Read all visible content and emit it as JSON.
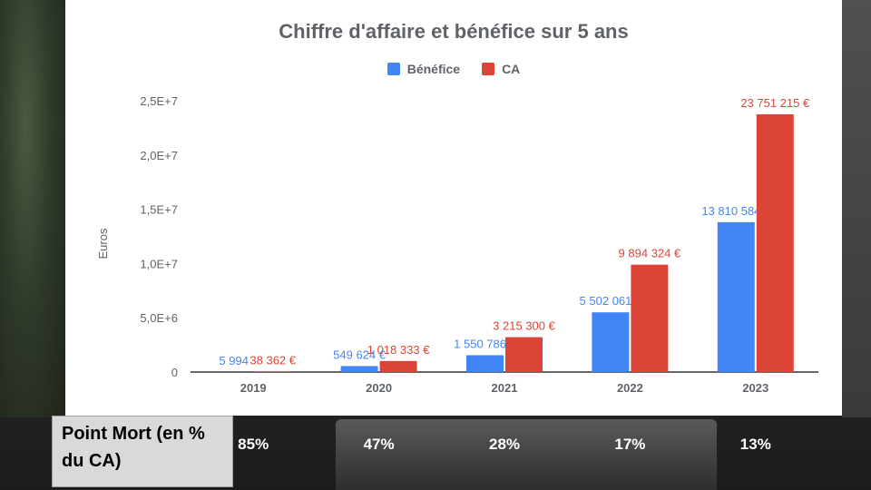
{
  "colors": {
    "benefice": "#4285f4",
    "ca": "#db4437",
    "axis_text": "#5f6368"
  },
  "chart_data": {
    "type": "bar",
    "title": "Chiffre d'affaire et bénéfice sur 5 ans",
    "xlabel": "",
    "ylabel": "Euros",
    "legend_position": "top",
    "grid": false,
    "ylim": [
      0,
      25000000
    ],
    "yticks": [
      0,
      5000000,
      10000000,
      15000000,
      20000000,
      25000000
    ],
    "ytick_labels": [
      "0",
      "5,0E+6",
      "1,0E+7",
      "1,5E+7",
      "2,0E+7",
      "2,5E+7"
    ],
    "categories": [
      "2019",
      "2020",
      "2021",
      "2022",
      "2023"
    ],
    "series": [
      {
        "name": "Bénéfice",
        "values": [
          5994,
          549624,
          1550786,
          5502061,
          13810584
        ],
        "labels": [
          "5 994",
          "549 624 €",
          "1 550 786 €",
          "5 502 061 €",
          "13 810 584 €"
        ]
      },
      {
        "name": "CA",
        "values": [
          38362,
          1018333,
          3215300,
          9894324,
          23751215
        ],
        "labels": [
          "38 362 €",
          "1 018 333 €",
          "3 215 300 €",
          "9 894 324 €",
          "23 751 215 €"
        ]
      }
    ]
  },
  "footer": {
    "label": "Point Mort (en % du CA)",
    "values": [
      "85%",
      "47%",
      "28%",
      "17%",
      "13%"
    ]
  }
}
